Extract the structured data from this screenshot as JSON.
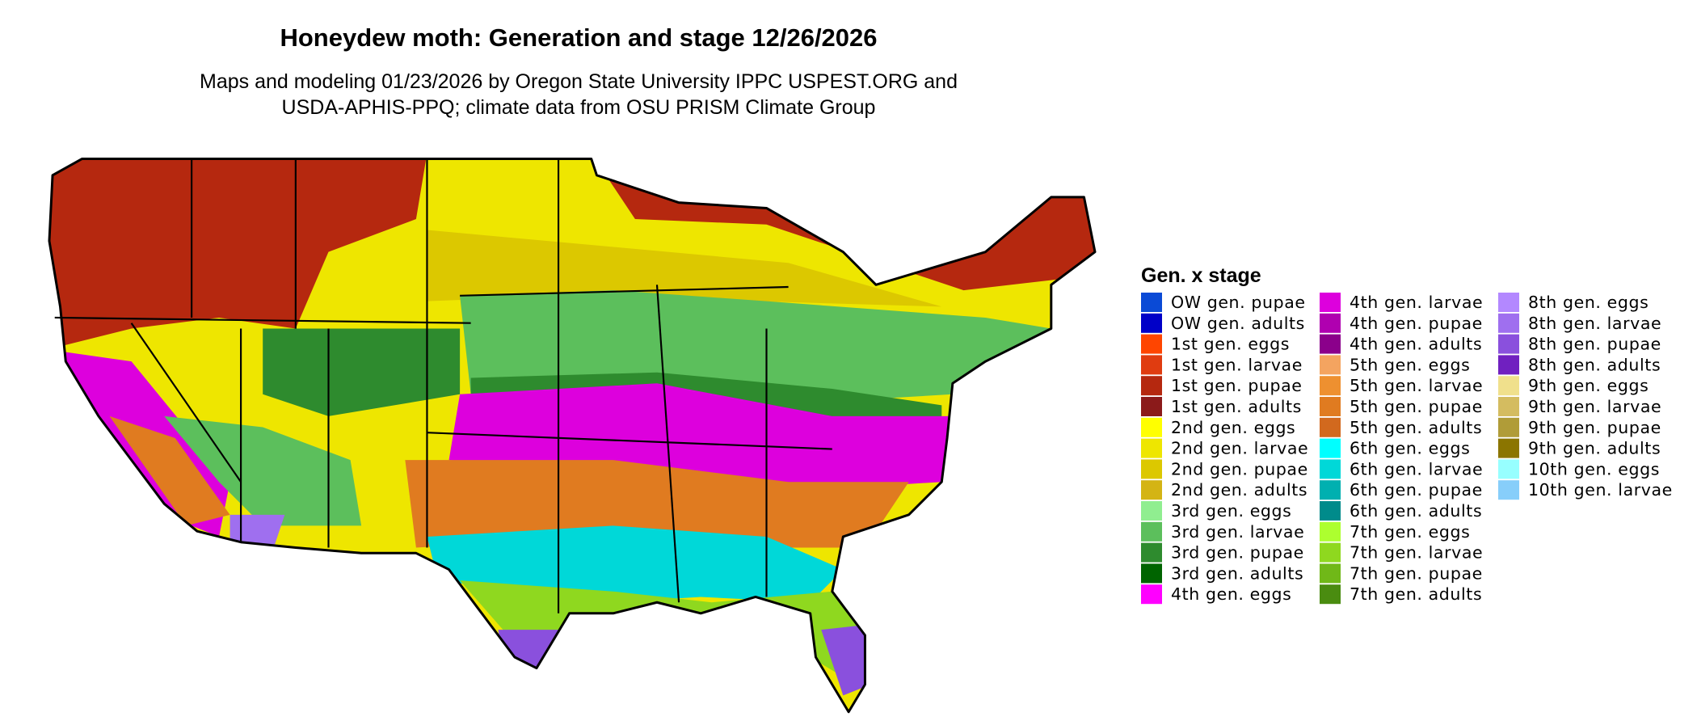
{
  "title": "Honeydew moth: Generation and stage 12/26/2026",
  "subtitle": [
    "Maps and modeling 01/23/2026 by Oregon State University IPPC USPEST.ORG and",
    "USDA-APHIS-PPQ; climate data from OSU PRISM Climate Group"
  ],
  "legend": {
    "title": "Gen. x stage",
    "items": [
      {
        "name": "OW gen. pupae",
        "color": "#0a4ad6"
      },
      {
        "name": "OW gen. adults",
        "color": "#0000c8"
      },
      {
        "name": "1st gen. eggs",
        "color": "#ff4500"
      },
      {
        "name": "1st gen. larvae",
        "color": "#e03c10"
      },
      {
        "name": "1st gen. pupae",
        "color": "#b5280f"
      },
      {
        "name": "1st gen. adults",
        "color": "#8b1a1a"
      },
      {
        "name": "2nd gen. eggs",
        "color": "#ffff00"
      },
      {
        "name": "2nd gen. larvae",
        "color": "#eee600"
      },
      {
        "name": "2nd gen. pupae",
        "color": "#dcc800"
      },
      {
        "name": "2nd gen. adults",
        "color": "#d4b414"
      },
      {
        "name": "3rd gen. eggs",
        "color": "#90ee90"
      },
      {
        "name": "3rd gen. larvae",
        "color": "#5cbf5c"
      },
      {
        "name": "3rd gen. pupae",
        "color": "#2e8b2e"
      },
      {
        "name": "3rd gen. adults",
        "color": "#006400"
      },
      {
        "name": "4th gen. eggs",
        "color": "#ff00ff"
      },
      {
        "name": "4th gen. larvae",
        "color": "#dd00dd"
      },
      {
        "name": "4th gen. pupae",
        "color": "#b000b0"
      },
      {
        "name": "4th gen. adults",
        "color": "#8b008b"
      },
      {
        "name": "5th gen. eggs",
        "color": "#f4a460"
      },
      {
        "name": "5th gen. larvae",
        "color": "#ee9030"
      },
      {
        "name": "5th gen. pupae",
        "color": "#e07b20"
      },
      {
        "name": "5th gen. adults",
        "color": "#d2691e"
      },
      {
        "name": "6th gen. eggs",
        "color": "#00ffff"
      },
      {
        "name": "6th gen. larvae",
        "color": "#00d8d8"
      },
      {
        "name": "6th gen. pupae",
        "color": "#00b0b0"
      },
      {
        "name": "6th gen. adults",
        "color": "#008b8b"
      },
      {
        "name": "7th gen. eggs",
        "color": "#adff2f"
      },
      {
        "name": "7th gen. larvae",
        "color": "#8fd81f"
      },
      {
        "name": "7th gen. pupae",
        "color": "#70b818"
      },
      {
        "name": "7th gen. adults",
        "color": "#4a8c10"
      },
      {
        "name": "8th gen. eggs",
        "color": "#b388ff"
      },
      {
        "name": "8th gen. larvae",
        "color": "#9f6fef"
      },
      {
        "name": "8th gen. pupae",
        "color": "#8a50dd"
      },
      {
        "name": "8th gen. adults",
        "color": "#7020c0"
      },
      {
        "name": "9th gen. eggs",
        "color": "#f0e08c"
      },
      {
        "name": "9th gen. larvae",
        "color": "#d4bc60"
      },
      {
        "name": "9th gen. pupae",
        "color": "#b09c38"
      },
      {
        "name": "9th gen. adults",
        "color": "#8b7500"
      },
      {
        "name": "10th gen. eggs",
        "color": "#97ffff"
      },
      {
        "name": "10th gen. larvae",
        "color": "#87cefa"
      }
    ]
  }
}
